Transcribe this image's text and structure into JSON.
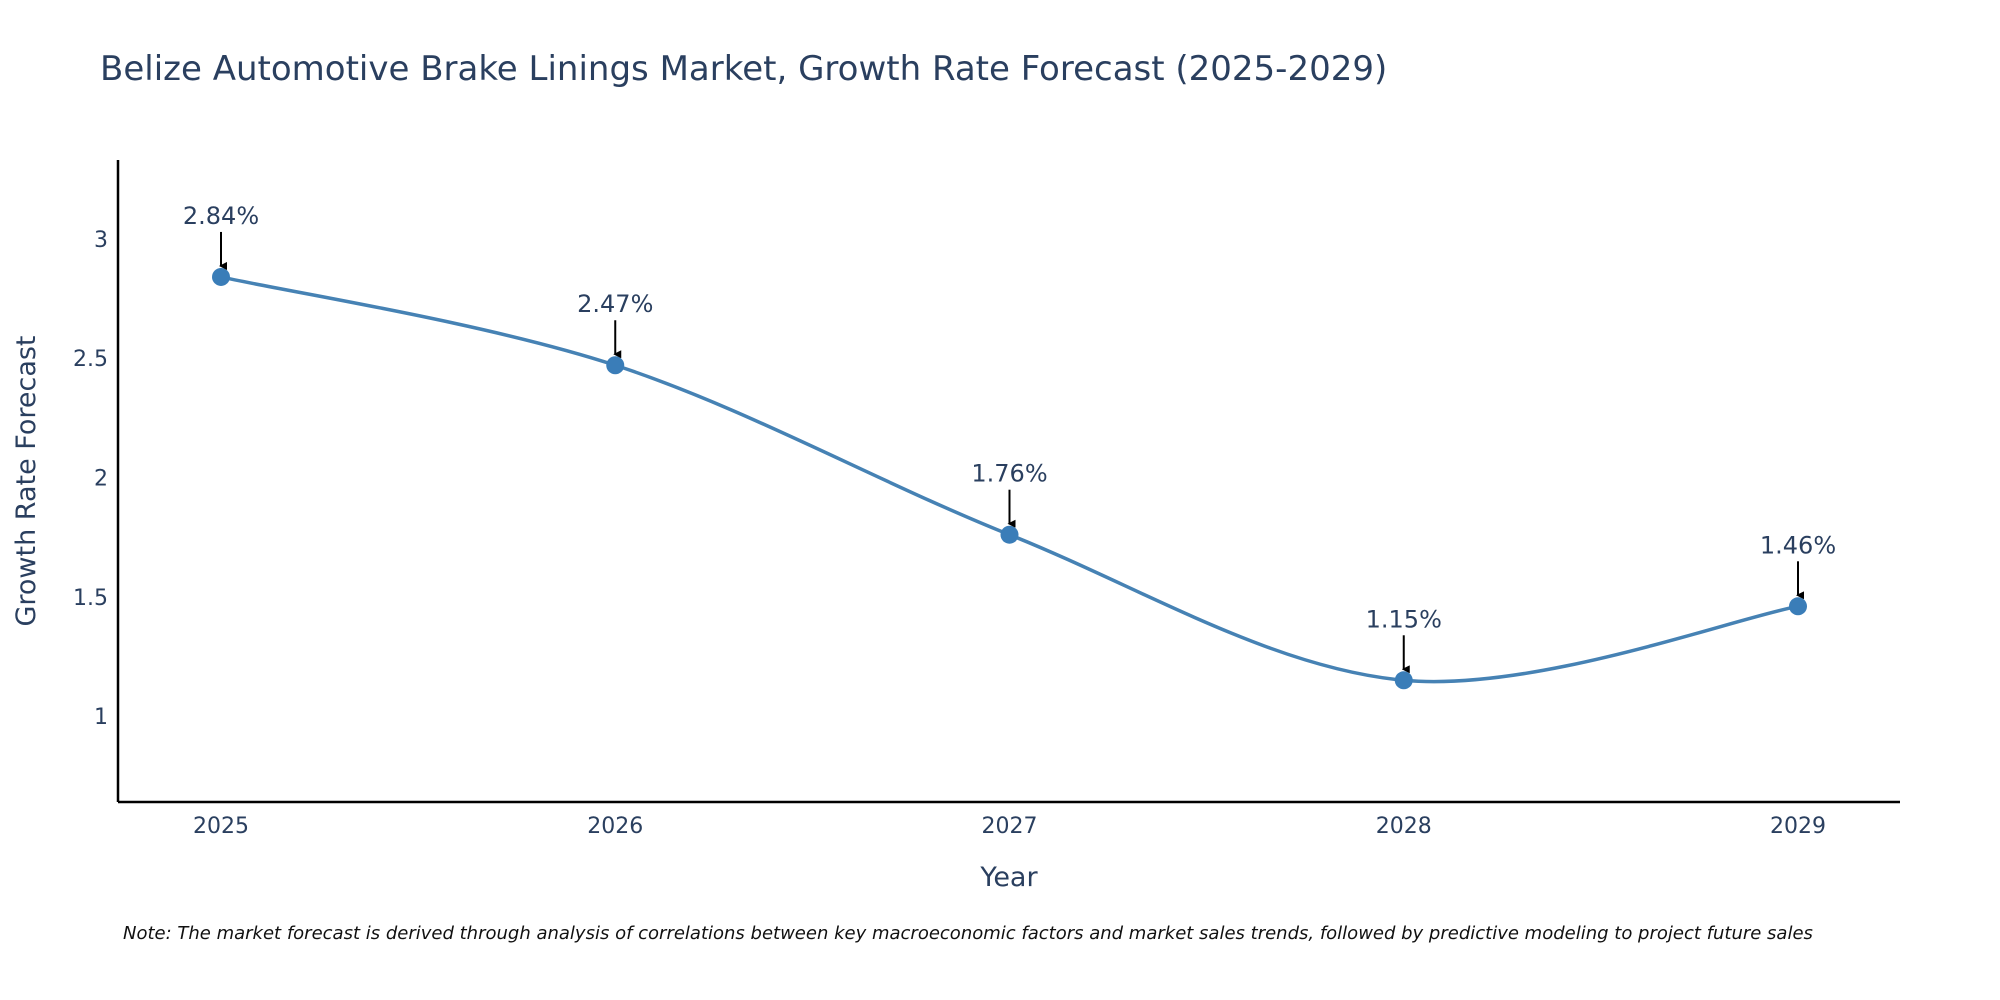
{
  "colors": {
    "line": "#4682b4",
    "marker": "#3a7db8",
    "axis": "#000000",
    "text": "#2a3f5f",
    "arrow": "#000000"
  },
  "chart_data": {
    "type": "line",
    "title": "Belize Automotive Brake Linings Market, Growth Rate Forecast (2025-2029)",
    "xlabel": "Year",
    "ylabel": "Growth Rate Forecast",
    "categories": [
      "2025",
      "2026",
      "2027",
      "2028",
      "2029"
    ],
    "values": [
      2.84,
      2.47,
      1.76,
      1.15,
      1.46
    ],
    "data_labels": [
      "2.84%",
      "2.47%",
      "1.76%",
      "1.15%",
      "1.46%"
    ],
    "y_ticks": [
      1,
      1.5,
      2,
      2.5,
      3
    ],
    "y_tick_labels": [
      "1",
      "1.5",
      "2",
      "2.5",
      "3"
    ],
    "ylim": [
      0.64,
      3.33
    ],
    "grid": false,
    "line_shape": "spline",
    "note": "Note: The market forecast is derived through analysis of correlations between key macroeconomic factors and market sales trends, followed by predictive modeling to project future sales"
  }
}
